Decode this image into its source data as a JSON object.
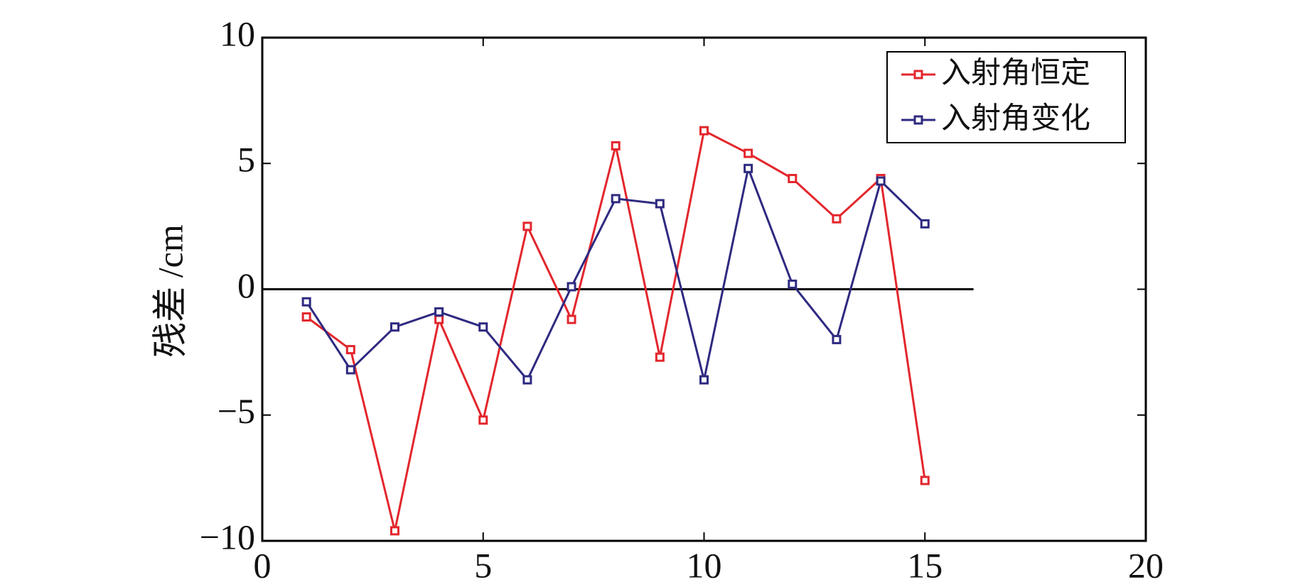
{
  "chart_data": {
    "type": "line",
    "ylabel": "残差 /cm",
    "x": [
      1,
      2,
      3,
      4,
      5,
      6,
      7,
      8,
      9,
      10,
      11,
      12,
      13,
      14,
      15
    ],
    "series": [
      {
        "name": "入射角恒定",
        "color": "#e3262d",
        "values": [
          -1.1,
          -2.4,
          -9.6,
          -1.2,
          -5.2,
          2.5,
          -1.2,
          5.7,
          -2.7,
          6.3,
          5.4,
          4.4,
          2.8,
          4.4,
          -7.6
        ]
      },
      {
        "name": "入射角变化",
        "color": "#2e2a80",
        "values": [
          -0.5,
          -3.2,
          -1.5,
          -0.9,
          -1.5,
          -3.6,
          0.1,
          3.6,
          3.4,
          -3.6,
          4.8,
          0.2,
          -2.0,
          4.3,
          2.6
        ]
      }
    ],
    "xlim": [
      0,
      20
    ],
    "xticks": [
      0,
      5,
      10,
      15,
      20
    ],
    "ylim": [
      -10,
      10
    ],
    "yticks": [
      {
        "value": -10,
        "label": "−10"
      },
      {
        "value": -5,
        "label": "−5"
      },
      0,
      5,
      10
    ],
    "hline": {
      "y": 0,
      "x_end": 16.1
    },
    "legend": "upper right",
    "grid": false
  }
}
